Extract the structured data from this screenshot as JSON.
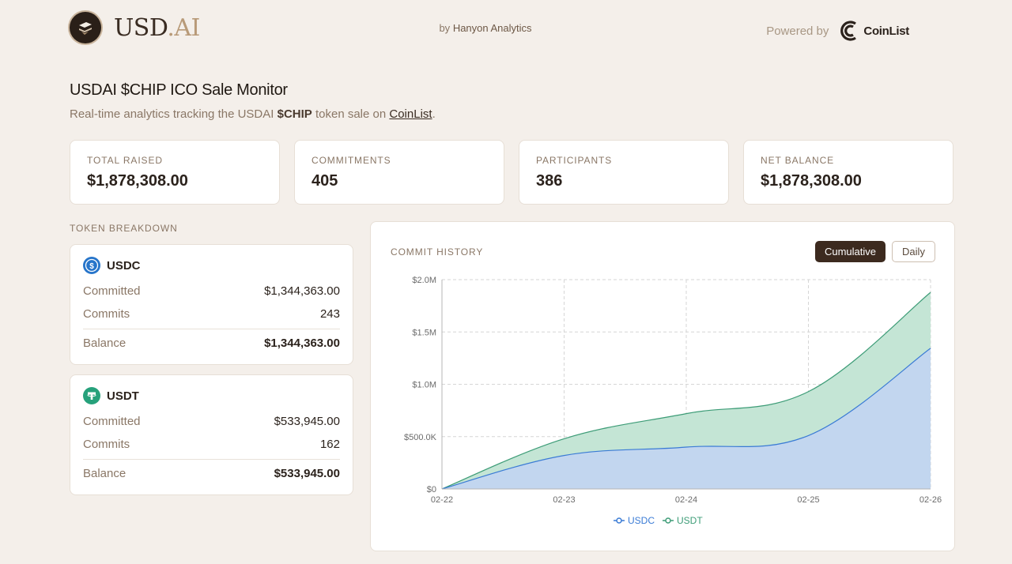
{
  "header": {
    "logo_text_main": "USD",
    "logo_text_accent": ".AI",
    "byline_prefix": "by",
    "byline_name": "Hanyon Analytics",
    "powered_label": "Powered by",
    "partner_name": "CoinList"
  },
  "page": {
    "title": "USDAI $CHIP ICO Sale Monitor",
    "subtitle_prefix": "Real-time analytics tracking the USDAI",
    "subtitle_token": "$CHIP",
    "subtitle_middle": "token sale on",
    "subtitle_link": "CoinList",
    "subtitle_suffix": "."
  },
  "stats": [
    {
      "label": "TOTAL RAISED",
      "value": "$1,878,308.00"
    },
    {
      "label": "COMMITMENTS",
      "value": "405"
    },
    {
      "label": "PARTICIPANTS",
      "value": "386"
    },
    {
      "label": "NET BALANCE",
      "value": "$1,878,308.00"
    }
  ],
  "breakdown": {
    "label": "TOKEN BREAKDOWN",
    "tokens": [
      {
        "name": "USDC",
        "icon": "usdc-icon",
        "color": "#2775ca",
        "committed_label": "Committed",
        "committed": "$1,344,363.00",
        "commits_label": "Commits",
        "commits": "243",
        "balance_label": "Balance",
        "balance": "$1,344,363.00"
      },
      {
        "name": "USDT",
        "icon": "usdt-icon",
        "color": "#26a17b",
        "committed_label": "Committed",
        "committed": "$533,945.00",
        "commits_label": "Commits",
        "commits": "162",
        "balance_label": "Balance",
        "balance": "$533,945.00"
      }
    ]
  },
  "chart": {
    "title": "COMMIT HISTORY",
    "buttons": {
      "cumulative": "Cumulative",
      "daily": "Daily"
    },
    "active_button": "cumulative"
  },
  "chart_data": {
    "type": "area",
    "stacked": true,
    "x": [
      "02-22",
      "02-23",
      "02-24",
      "02-25",
      "02-26"
    ],
    "y_ticks": [
      "$0",
      "$500.0K",
      "$1.0M",
      "$1.5M",
      "$2.0M"
    ],
    "y_tick_values": [
      0,
      500000,
      1000000,
      1500000,
      2000000
    ],
    "ylim": [
      0,
      2000000
    ],
    "grid": true,
    "legend_position": "bottom",
    "series": [
      {
        "name": "USDC",
        "color": "#3a7bd5",
        "fill": "#c2d6ef",
        "values": [
          0,
          320000,
          400000,
          510000,
          1344363
        ]
      },
      {
        "name": "USDT",
        "color": "#3d9c77",
        "fill": "#c4e5d5",
        "values": [
          0,
          160000,
          320000,
          420000,
          533945
        ]
      }
    ]
  }
}
